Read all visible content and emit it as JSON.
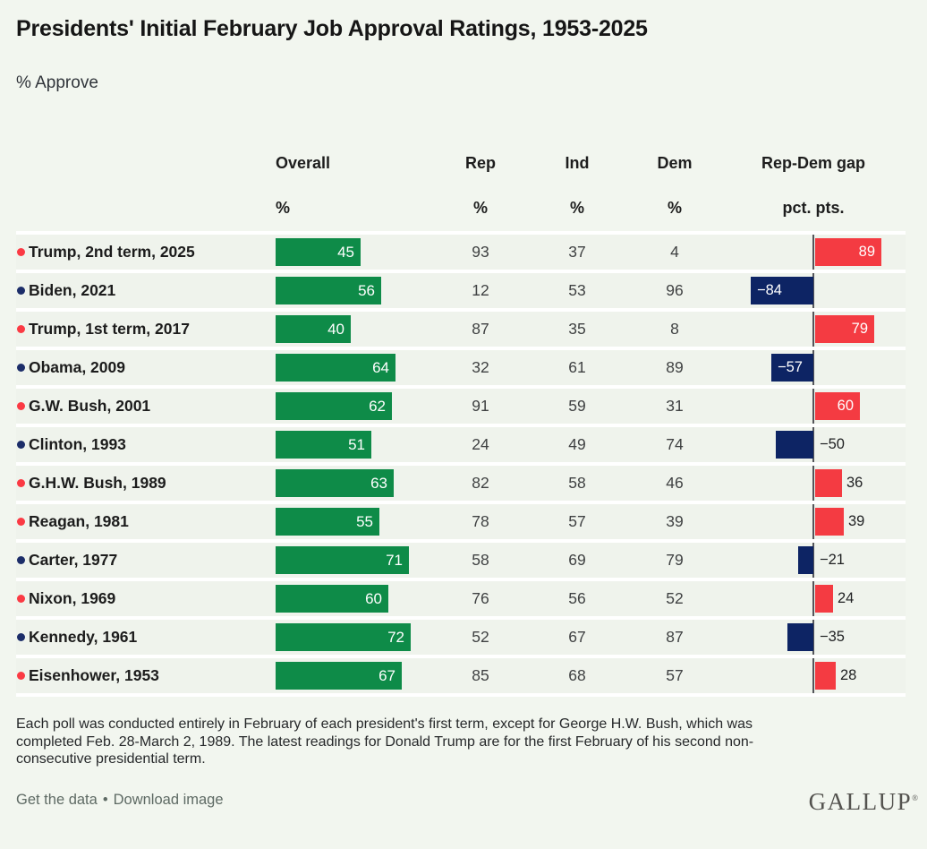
{
  "page": {
    "title": "Presidents' Initial February Job Approval Ratings, 1953-2025",
    "subtitle": "% Approve"
  },
  "colors": {
    "page_background": "#f2f6ef",
    "row_background": "#eff3ec",
    "overall_bar_green": "#0e8b48",
    "gap_positive_red": "#f43b42",
    "gap_negative_navy": "#0d2464",
    "republican_dot": "#fb3a44",
    "democrat_dot": "#1c2d69",
    "axis_line": "#54555a"
  },
  "table": {
    "header": {
      "overall": "Overall",
      "rep": "Rep",
      "ind": "Ind",
      "dem": "Dem",
      "gap": "Rep-Dem gap",
      "pct_unit": "%",
      "gap_unit": "pct. pts."
    },
    "rows": [
      {
        "president": "Trump, 2nd term, 2025",
        "party": "R",
        "overall": 45,
        "rep": 93,
        "ind": 37,
        "dem": 4,
        "gap": 89,
        "gap_display": "89",
        "gap_label_inside": true
      },
      {
        "president": "Biden, 2021",
        "party": "D",
        "overall": 56,
        "rep": 12,
        "ind": 53,
        "dem": 96,
        "gap": -84,
        "gap_display": "−84",
        "gap_label_inside": true
      },
      {
        "president": "Trump, 1st term, 2017",
        "party": "R",
        "overall": 40,
        "rep": 87,
        "ind": 35,
        "dem": 8,
        "gap": 79,
        "gap_display": "79",
        "gap_label_inside": true
      },
      {
        "president": "Obama, 2009",
        "party": "D",
        "overall": 64,
        "rep": 32,
        "ind": 61,
        "dem": 89,
        "gap": -57,
        "gap_display": "−57",
        "gap_label_inside": true
      },
      {
        "president": "G.W. Bush, 2001",
        "party": "R",
        "overall": 62,
        "rep": 91,
        "ind": 59,
        "dem": 31,
        "gap": 60,
        "gap_display": "60",
        "gap_label_inside": true
      },
      {
        "president": "Clinton, 1993",
        "party": "D",
        "overall": 51,
        "rep": 24,
        "ind": 49,
        "dem": 74,
        "gap": -50,
        "gap_display": "−50",
        "gap_label_inside": false
      },
      {
        "president": "G.H.W. Bush, 1989",
        "party": "R",
        "overall": 63,
        "rep": 82,
        "ind": 58,
        "dem": 46,
        "gap": 36,
        "gap_display": "36",
        "gap_label_inside": false
      },
      {
        "president": "Reagan, 1981",
        "party": "R",
        "overall": 55,
        "rep": 78,
        "ind": 57,
        "dem": 39,
        "gap": 39,
        "gap_display": "39",
        "gap_label_inside": false
      },
      {
        "president": "Carter, 1977",
        "party": "D",
        "overall": 71,
        "rep": 58,
        "ind": 69,
        "dem": 79,
        "gap": -21,
        "gap_display": "−21",
        "gap_label_inside": false
      },
      {
        "president": "Nixon, 1969",
        "party": "R",
        "overall": 60,
        "rep": 76,
        "ind": 56,
        "dem": 52,
        "gap": 24,
        "gap_display": "24",
        "gap_label_inside": false
      },
      {
        "president": "Kennedy, 1961",
        "party": "D",
        "overall": 72,
        "rep": 52,
        "ind": 67,
        "dem": 87,
        "gap": -35,
        "gap_display": "−35",
        "gap_label_inside": false
      },
      {
        "president": "Eisenhower, 1953",
        "party": "R",
        "overall": 67,
        "rep": 85,
        "ind": 68,
        "dem": 57,
        "gap": 28,
        "gap_display": "28",
        "gap_label_inside": false
      }
    ]
  },
  "chart_data": {
    "type": "bar",
    "title": "Presidents' Initial February Job Approval Ratings, 1953-2025",
    "subtitle": "% Approve",
    "categories": [
      "Trump, 2nd term, 2025",
      "Biden, 2021",
      "Trump, 1st term, 2017",
      "Obama, 2009",
      "G.W. Bush, 2001",
      "Clinton, 1993",
      "G.H.W. Bush, 1989",
      "Reagan, 1981",
      "Carter, 1977",
      "Nixon, 1969",
      "Kennedy, 1961",
      "Eisenhower, 1953"
    ],
    "series": [
      {
        "name": "Overall %",
        "values": [
          45,
          56,
          40,
          64,
          62,
          51,
          63,
          55,
          71,
          60,
          72,
          67
        ]
      },
      {
        "name": "Rep %",
        "values": [
          93,
          12,
          87,
          32,
          91,
          24,
          82,
          78,
          58,
          76,
          52,
          85
        ]
      },
      {
        "name": "Ind %",
        "values": [
          37,
          53,
          35,
          61,
          59,
          49,
          58,
          57,
          69,
          56,
          67,
          68
        ]
      },
      {
        "name": "Dem %",
        "values": [
          4,
          96,
          8,
          89,
          31,
          74,
          46,
          39,
          79,
          52,
          87,
          57
        ]
      },
      {
        "name": "Rep-Dem gap pct. pts.",
        "values": [
          89,
          -84,
          79,
          -57,
          60,
          -50,
          36,
          39,
          -21,
          24,
          -35,
          28
        ]
      }
    ],
    "layout": {
      "orientation": "horizontal",
      "overall_axis_range": [
        0,
        100
      ],
      "gap_axis_zero_line": true,
      "grid": false,
      "legend": "none"
    }
  },
  "footnote_lines": [
    "Each poll was conducted entirely in February of each president's first term, except for George H.W. Bush, which was",
    "completed Feb. 28-March 2, 1989. The latest readings for Donald Trump are for the first February of his second non-",
    "consecutive presidential term."
  ],
  "footer": {
    "get_data_label": "Get the data",
    "separator": "•",
    "download_label": "Download image",
    "logo_text": "GALLUP",
    "logo_mark": "®"
  }
}
